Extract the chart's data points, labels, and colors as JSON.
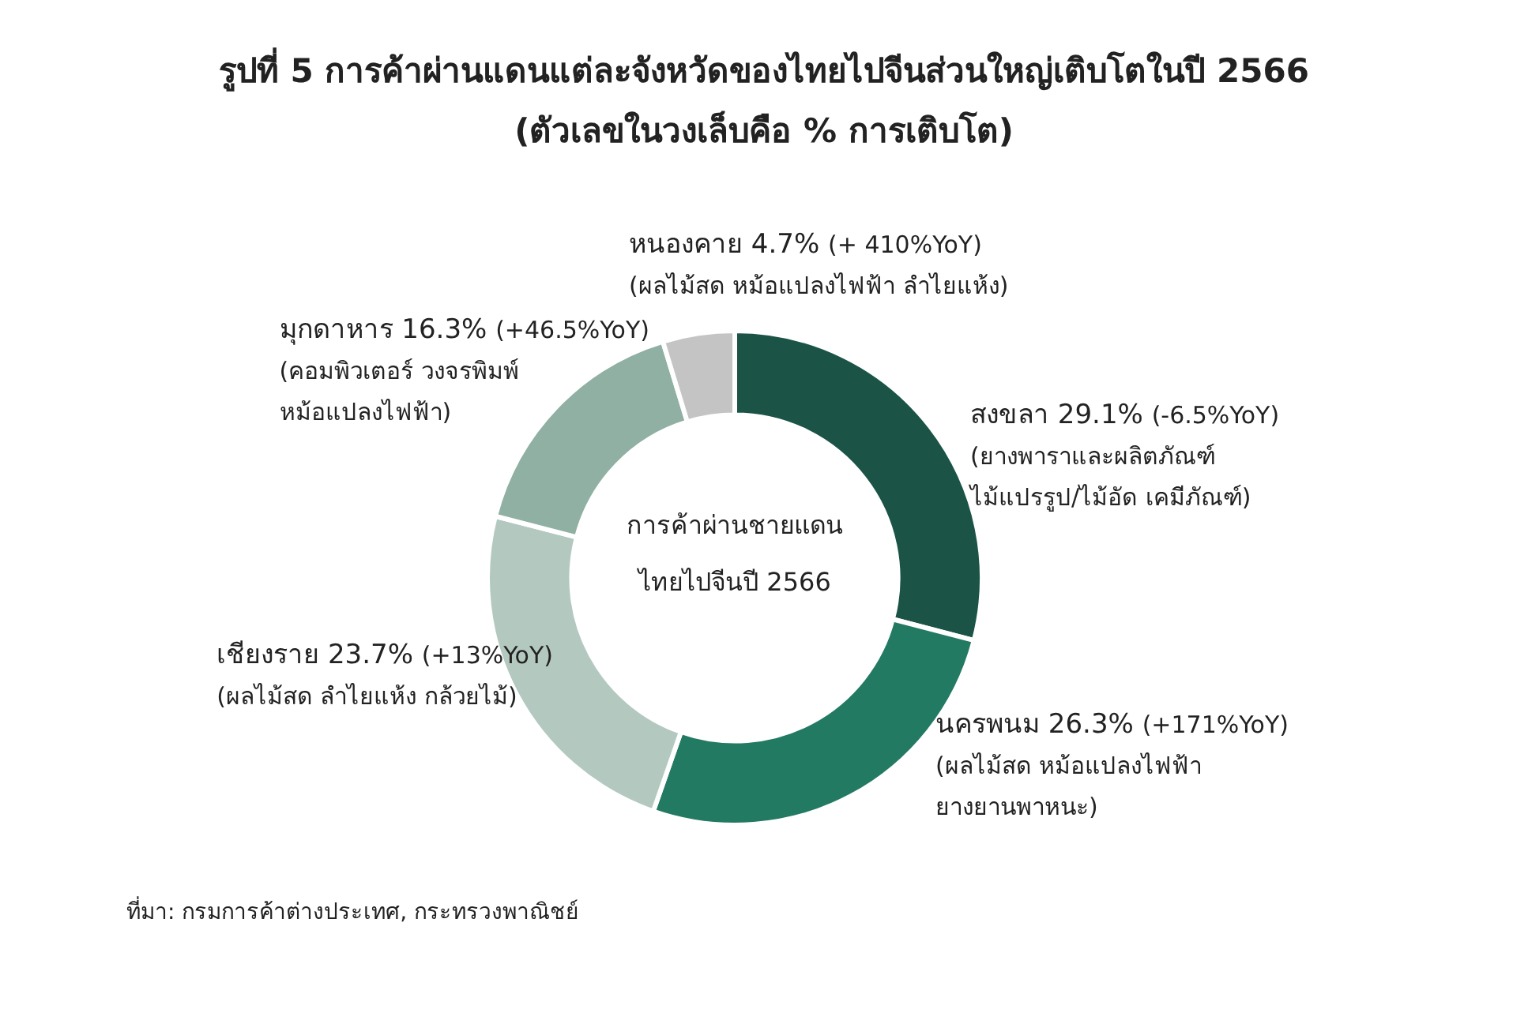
{
  "chart_data": {
    "type": "donut",
    "title": "รูปที่ 5 การค้าผ่านแดนแต่ละจังหวัดของไทยไปจีนส่วนใหญ่เติบโตในปี 2566",
    "subtitle": "(ตัวเลขในวงเล็บคือ % การเติบโต)",
    "categories": [
      "สงขลา",
      "นครพนม",
      "เชียงราย",
      "มุกดาหาร",
      "หนองคาย"
    ],
    "values": [
      29.1,
      26.3,
      23.7,
      16.3,
      4.7
    ],
    "value_labels": [
      "29.1%",
      "26.3%",
      "23.7%",
      "16.3%",
      "4.7%"
    ],
    "colors": [
      "#1b5446",
      "#237a62",
      "#b3c9c0",
      "#8fb0a3",
      "#c4c4c4"
    ],
    "annotations": [
      "การค้าผ่านชายแดน\nไทยไปจีนปี 2566",
      "(-6.5%YoY)",
      "(ยางพาราและผลิตภัณฑ์\nไม้แปรรูป/ไม้อัด เคมีภัณฑ์)",
      "(+171%YoY)",
      "(ผลไม้สด หม้อแปลงไฟฟ้า\nยางยานพาหนะ)",
      "(+13%YoY)",
      "(ผลไม้สด ลำไยแห้ง กล้วยไม้)",
      "(+46.5%YoY)",
      "(คอมพิวเตอร์ วงจรพิมพ์\nหม้อแปลงไฟฟ้า)",
      "(+ 410%YoY)",
      "(ผลไม้สด หม้อแปลงไฟฟ้า ลำไยแห้ง)",
      "ที่มา: กรมการค้าต่างประเทศ, กระทรวงพาณิชย์"
    ],
    "legend": false
  }
}
